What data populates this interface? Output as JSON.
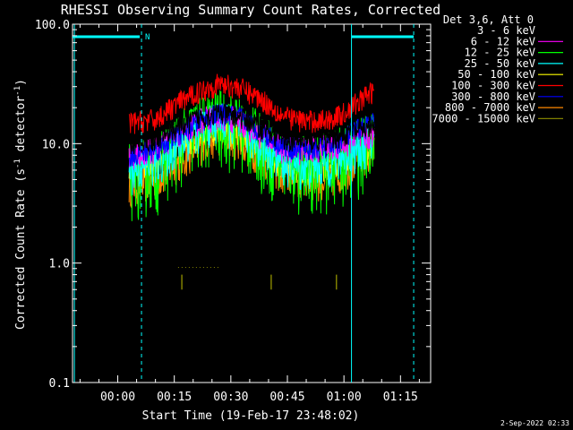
{
  "chart_data": {
    "type": "line",
    "title": "RHESSI Observing Summary Count Rates, Corrected",
    "xlabel": "Start Time (19-Feb-17 23:48:02)",
    "ylabel_parts": {
      "base": "Corrected Count Rate (s",
      "sup1": "-1",
      "mid": " detector",
      "sup2": "-1",
      "end": ")"
    },
    "yscale": "log",
    "ylim": [
      0.1,
      100.0
    ],
    "y_ticks": [
      {
        "v": 100.0,
        "label": "100.0"
      },
      {
        "v": 10.0,
        "label": "10.0"
      },
      {
        "v": 1.0,
        "label": "1.0"
      },
      {
        "v": 0.1,
        "label": "0.1"
      }
    ],
    "xlim_min": [
      -12,
      83
    ],
    "x_ticks": [
      {
        "v": 0,
        "label": "00:00"
      },
      {
        "v": 15,
        "label": "00:15"
      },
      {
        "v": 30,
        "label": "00:30"
      },
      {
        "v": 45,
        "label": "00:45"
      },
      {
        "v": 60,
        "label": "01:00"
      },
      {
        "v": 75,
        "label": "01:15"
      }
    ],
    "legend_header": "Det 3,6, Att 0",
    "legend_position": "top-right",
    "night_marker": {
      "label": "N",
      "night_end_min": 6.3,
      "night_start_min": 61.6,
      "dashed_min": [
        6.3,
        78.5
      ],
      "solid_min": [
        -11.5,
        62.0
      ]
    },
    "data_range_min": [
      3,
      68
    ],
    "series": [
      {
        "name": "3 - 6 keV",
        "color": "#000000",
        "points": [
          [
            3,
            10
          ],
          [
            10,
            11
          ],
          [
            16,
            14
          ],
          [
            22,
            17
          ],
          [
            27,
            18
          ],
          [
            32,
            17
          ],
          [
            38,
            14
          ],
          [
            44,
            11
          ],
          [
            50,
            10.5
          ],
          [
            56,
            11
          ],
          [
            60,
            12
          ],
          [
            64,
            13
          ],
          [
            68,
            14
          ]
        ],
        "noise": 0.1
      },
      {
        "name": "6 - 12 keV",
        "color": "#ff00ff",
        "points": [
          [
            3,
            8
          ],
          [
            10,
            9
          ],
          [
            16,
            12
          ],
          [
            22,
            16
          ],
          [
            27,
            17
          ],
          [
            32,
            16
          ],
          [
            38,
            12
          ],
          [
            44,
            9
          ],
          [
            50,
            9
          ],
          [
            56,
            9.5
          ],
          [
            60,
            10
          ],
          [
            64,
            11
          ],
          [
            68,
            12
          ]
        ],
        "noise": 0.12
      },
      {
        "name": "12 - 25 keV",
        "color": "#00ff00",
        "points": [
          [
            3,
            6
          ],
          [
            10,
            7
          ],
          [
            16,
            11
          ],
          [
            22,
            15
          ],
          [
            27,
            17
          ],
          [
            32,
            15
          ],
          [
            38,
            11
          ],
          [
            44,
            7.5
          ],
          [
            50,
            7
          ],
          [
            56,
            7.5
          ],
          [
            60,
            8.5
          ],
          [
            64,
            10
          ],
          [
            68,
            11
          ]
        ],
        "noise": 0.3
      },
      {
        "name": "25 - 50 keV",
        "color": "#00ffff",
        "points": [
          [
            3,
            6
          ],
          [
            10,
            7
          ],
          [
            16,
            10
          ],
          [
            22,
            14
          ],
          [
            27,
            16
          ],
          [
            32,
            14
          ],
          [
            38,
            10
          ],
          [
            44,
            7
          ],
          [
            50,
            6.5
          ],
          [
            56,
            7
          ],
          [
            60,
            8
          ],
          [
            64,
            9.5
          ],
          [
            68,
            10.5
          ]
        ],
        "noise": 0.18
      },
      {
        "name": "50 - 100 keV",
        "color": "#ffff00",
        "points": [
          [
            3,
            6
          ],
          [
            10,
            6.5
          ],
          [
            16,
            9
          ],
          [
            22,
            12
          ],
          [
            27,
            13
          ],
          [
            32,
            12
          ],
          [
            38,
            9
          ],
          [
            44,
            6.5
          ],
          [
            50,
            6
          ],
          [
            56,
            6.5
          ],
          [
            60,
            7.5
          ],
          [
            64,
            8.5
          ],
          [
            68,
            9
          ]
        ],
        "noise": 0.12
      },
      {
        "name": "100 - 300 keV",
        "color": "#ff0000",
        "points": [
          [
            3,
            15
          ],
          [
            10,
            16
          ],
          [
            16,
            22
          ],
          [
            22,
            28
          ],
          [
            27,
            32
          ],
          [
            32,
            30
          ],
          [
            38,
            24
          ],
          [
            44,
            17
          ],
          [
            50,
            15.5
          ],
          [
            56,
            16
          ],
          [
            60,
            18
          ],
          [
            64,
            23
          ],
          [
            68,
            28
          ]
        ],
        "noise": 0.1
      },
      {
        "name": "300 - 800 keV",
        "color": "#0000ff",
        "points": [
          [
            3,
            8
          ],
          [
            10,
            9
          ],
          [
            16,
            12
          ],
          [
            22,
            16
          ],
          [
            27,
            18
          ],
          [
            32,
            17
          ],
          [
            38,
            13
          ],
          [
            44,
            9.5
          ],
          [
            50,
            9
          ],
          [
            56,
            9.5
          ],
          [
            60,
            11
          ],
          [
            64,
            13.5
          ],
          [
            68,
            15
          ]
        ],
        "noise": 0.1
      },
      {
        "name": "800 - 7000 keV",
        "color": "#ff8800",
        "points": [
          [
            3,
            4.5
          ],
          [
            10,
            5
          ],
          [
            16,
            7
          ],
          [
            22,
            10
          ],
          [
            27,
            12
          ],
          [
            32,
            11
          ],
          [
            38,
            8
          ],
          [
            44,
            5.5
          ],
          [
            50,
            5
          ],
          [
            56,
            5
          ],
          [
            60,
            6
          ],
          [
            64,
            7.5
          ],
          [
            68,
            8.5
          ]
        ],
        "noise": 0.16
      },
      {
        "name": "7000 - 15000 keV",
        "color": "#808000",
        "points": [
          [
            16,
            0.92
          ],
          [
            27,
            0.92
          ]
        ],
        "noise": 0
      }
    ],
    "olive_spikes_min": [
      17.0,
      40.7,
      58.0
    ],
    "timestamp": "2-Sep-2022 02:33"
  }
}
